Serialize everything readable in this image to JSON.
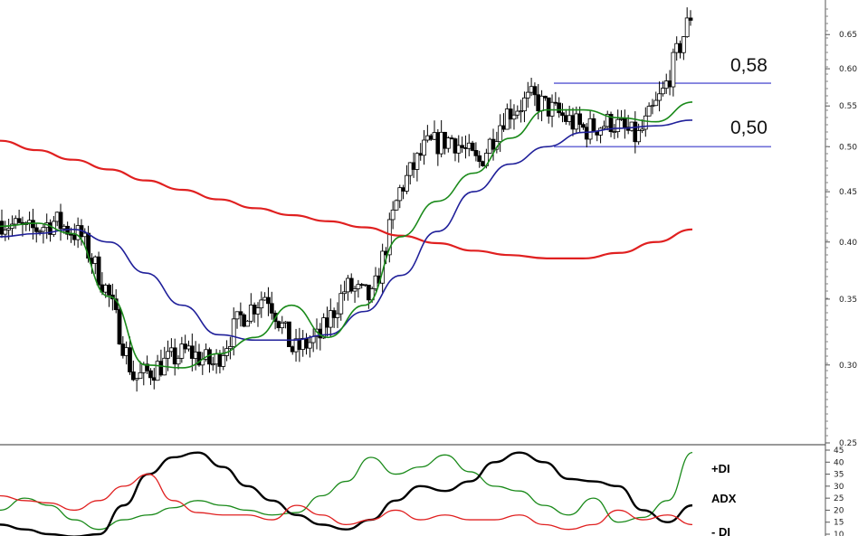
{
  "chart_data": [
    {
      "type": "ohlc",
      "scale": "log",
      "ylim": [
        0.25,
        0.69
      ],
      "yticks": [
        "0.65",
        "0.60",
        "0.55",
        "0.50",
        "0.45",
        "0.40",
        "0.35",
        "0.30",
        "0.25"
      ],
      "yticks_values": [
        0.65,
        0.6,
        0.55,
        0.5,
        0.45,
        0.4,
        0.35,
        0.3,
        0.25
      ],
      "levels": [
        {
          "label": "0,58",
          "value": 0.58,
          "color": "#6f6fd8"
        },
        {
          "label": "0,50",
          "value": 0.5,
          "color": "#6f6fd8"
        }
      ],
      "series": [
        {
          "name": "",
          "color": "#e02020",
          "values": [
            0.507,
            0.496,
            0.485,
            0.474,
            0.462,
            0.452,
            0.442,
            0.433,
            0.426,
            0.42,
            0.414,
            0.406,
            0.399,
            0.392,
            0.388,
            0.385,
            0.385,
            0.39,
            0.4,
            0.412
          ]
        },
        {
          "name": "",
          "color": "#20209a",
          "values": [
            0.405,
            0.408,
            0.412,
            0.4,
            0.372,
            0.345,
            0.322,
            0.318,
            0.318,
            0.322,
            0.34,
            0.37,
            0.41,
            0.45,
            0.48,
            0.5,
            0.517,
            0.522,
            0.525,
            0.532
          ]
        },
        {
          "name": "",
          "color": "#1a8a1a",
          "values": [
            0.415,
            0.418,
            0.408,
            0.352,
            0.3,
            0.298,
            0.308,
            0.32,
            0.345,
            0.32,
            0.345,
            0.405,
            0.44,
            0.47,
            0.51,
            0.545,
            0.545,
            0.535,
            0.53,
            0.555
          ]
        }
      ],
      "price_path": [
        0.42,
        0.41,
        0.42,
        0.405,
        0.355,
        0.29,
        0.3,
        0.31,
        0.3,
        0.335,
        0.355,
        0.31,
        0.32,
        0.36,
        0.35,
        0.45,
        0.5,
        0.51,
        0.48,
        0.54,
        0.56,
        0.54,
        0.52,
        0.53,
        0.51,
        0.57,
        0.68
      ]
    },
    {
      "type": "line",
      "ylim": [
        10,
        45
      ],
      "yticks": [
        "45",
        "40",
        "35",
        "30",
        "25",
        "20",
        "15",
        "10"
      ],
      "yticks_values": [
        45,
        40,
        35,
        30,
        25,
        20,
        15,
        10
      ],
      "legend": [
        "+DI",
        "ADX",
        "- DI"
      ],
      "series": [
        {
          "name": "+DI",
          "color": "#1a8a1a",
          "values": [
            20,
            25,
            22,
            16,
            12,
            16,
            18,
            21,
            24,
            22,
            20,
            18,
            19,
            26,
            32,
            42,
            35,
            38,
            43,
            36,
            30,
            28,
            22,
            18,
            25,
            15,
            17,
            24,
            44
          ]
        },
        {
          "name": "ADX",
          "color": "#000000",
          "values": [
            14,
            12,
            10,
            9,
            10,
            22,
            35,
            42,
            44,
            38,
            30,
            24,
            18,
            14,
            12,
            16,
            24,
            30,
            28,
            32,
            40,
            44,
            40,
            33,
            32,
            30,
            20,
            15,
            22
          ]
        },
        {
          "name": "- DI",
          "color": "#e02020",
          "values": [
            26,
            24,
            23,
            20,
            24,
            30,
            35,
            24,
            19,
            18,
            18,
            16,
            22,
            18,
            14,
            16,
            20,
            16,
            18,
            16,
            16,
            18,
            14,
            12,
            14,
            20,
            16,
            18,
            14
          ]
        }
      ]
    }
  ]
}
